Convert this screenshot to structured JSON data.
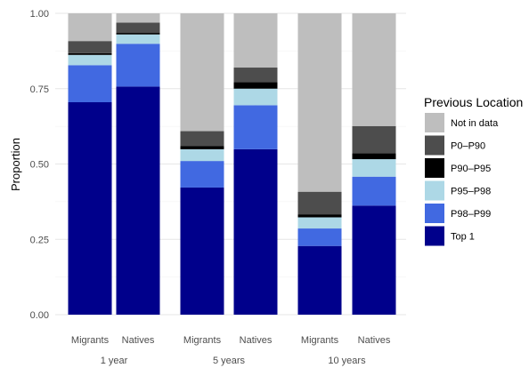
{
  "chart_data": {
    "type": "bar",
    "stacked": true,
    "ylabel": "Proportion",
    "y_ticks": [
      "0.00",
      "0.25",
      "0.50",
      "0.75",
      "1.00"
    ],
    "ylim": [
      0,
      1
    ],
    "grid": true,
    "legend_title": "Previous Location",
    "legend_position": "right",
    "groups": [
      "1 year",
      "5 years",
      "10 years"
    ],
    "categories": [
      "Migrants",
      "Natives",
      "Migrants",
      "Natives",
      "Migrants",
      "Natives"
    ],
    "category_group": [
      0,
      0,
      1,
      1,
      2,
      2
    ],
    "series": [
      {
        "name": "Top 1",
        "color": "#00008B",
        "values": [
          0.705,
          0.757,
          0.422,
          0.549,
          0.228,
          0.362
        ]
      },
      {
        "name": "P98–P99",
        "color": "#4169E1",
        "values": [
          0.123,
          0.142,
          0.088,
          0.146,
          0.058,
          0.096
        ]
      },
      {
        "name": "P95–P98",
        "color": "#ADD8E6",
        "values": [
          0.034,
          0.031,
          0.039,
          0.055,
          0.037,
          0.058
        ]
      },
      {
        "name": "P90–P95",
        "color": "#000000",
        "values": [
          0.006,
          0.005,
          0.01,
          0.022,
          0.01,
          0.02
        ]
      },
      {
        "name": "P0–P90",
        "color": "#4D4D4D",
        "values": [
          0.04,
          0.034,
          0.05,
          0.048,
          0.075,
          0.09
        ]
      },
      {
        "name": "Not in data",
        "color": "#BEBEBE",
        "values": [
          0.092,
          0.031,
          0.391,
          0.18,
          0.592,
          0.374
        ]
      }
    ],
    "legend_order": [
      "Not in data",
      "P0–P90",
      "P90–P95",
      "P95–P98",
      "P98–P99",
      "Top 1"
    ]
  }
}
